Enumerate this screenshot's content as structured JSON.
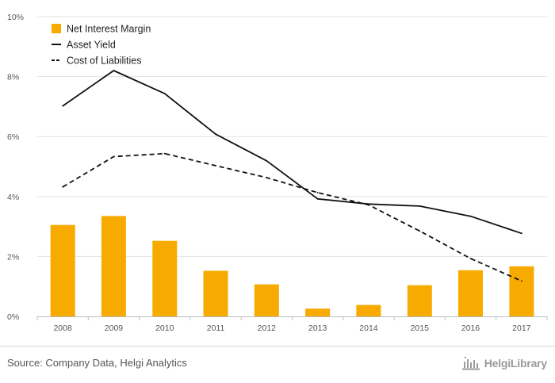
{
  "chart_data": {
    "type": "bar",
    "categories": [
      "2008",
      "2009",
      "2010",
      "2011",
      "2012",
      "2013",
      "2014",
      "2015",
      "2016",
      "2017"
    ],
    "series": [
      {
        "name": "Net Interest Margin",
        "kind": "bar",
        "color": "#F7AB00",
        "values": [
          3.05,
          3.35,
          2.52,
          1.52,
          1.07,
          0.26,
          0.38,
          1.04,
          1.54,
          1.67
        ]
      },
      {
        "name": "Asset Yield",
        "kind": "line",
        "style": "solid",
        "color": "#111111",
        "values": [
          7.02,
          8.2,
          7.43,
          6.08,
          5.19,
          3.92,
          3.75,
          3.68,
          3.34,
          2.77
        ]
      },
      {
        "name": "Cost of Liabilities",
        "kind": "line",
        "style": "dashed",
        "color": "#111111",
        "values": [
          4.32,
          5.33,
          5.43,
          5.03,
          4.63,
          4.13,
          3.72,
          2.85,
          1.93,
          1.18
        ]
      }
    ],
    "y_ticks": [
      "0%",
      "2%",
      "4%",
      "6%",
      "8%",
      "10%"
    ],
    "ylim": [
      0,
      10
    ],
    "grid": true,
    "legend_position": "top-left"
  },
  "footer": {
    "source": "Source: Company Data, Helgi Analytics",
    "brand": "HelgiLibrary"
  },
  "colors": {
    "bar": "#F7AB00",
    "line": "#111111",
    "grid": "#e3e3e3",
    "text": "#555555"
  },
  "icons": {
    "brand_logo": "library-building-icon"
  }
}
